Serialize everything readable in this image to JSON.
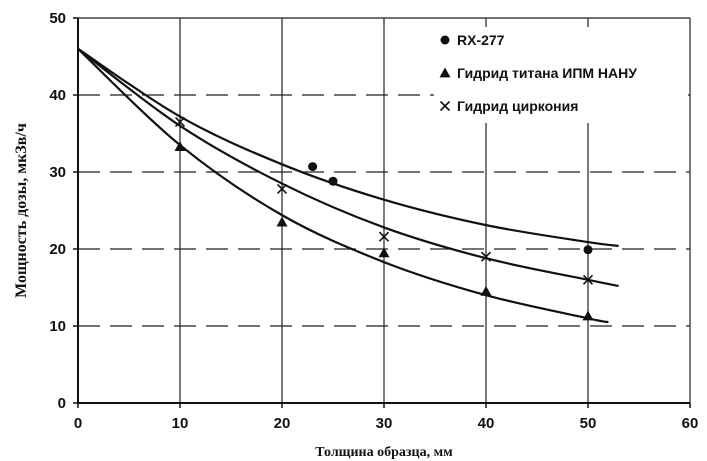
{
  "chart_data": {
    "type": "scatter",
    "xlabel": "Толщина образца, мм",
    "ylabel": "Мощность дозы, мкЗв/ч",
    "xlim": [
      0,
      60
    ],
    "ylim": [
      0,
      50
    ],
    "xticks": [
      "0",
      "10",
      "20",
      "30",
      "40",
      "50",
      "60"
    ],
    "yticks": [
      "0",
      "10",
      "20",
      "30",
      "40",
      "50"
    ],
    "grid": "vertical solid, horizontal dashed",
    "legend_position": "top-right",
    "series": [
      {
        "name": "RX-277",
        "marker": "circle",
        "points": [
          [
            23,
            30.7
          ],
          [
            25,
            28.8
          ],
          [
            50,
            19.9
          ]
        ],
        "fit_curve": [
          [
            0,
            46
          ],
          [
            10,
            37.2
          ],
          [
            20,
            31.0
          ],
          [
            30,
            26.4
          ],
          [
            40,
            23.1
          ],
          [
            50,
            20.9
          ],
          [
            53,
            20.4
          ]
        ]
      },
      {
        "name": "Гидрид титана ИПМ НАНУ",
        "marker": "triangle",
        "points": [
          [
            10,
            33.3
          ],
          [
            20,
            23.5
          ],
          [
            30,
            19.5
          ],
          [
            40,
            14.5
          ],
          [
            50,
            11.3
          ]
        ],
        "fit_curve": [
          [
            0,
            46
          ],
          [
            10,
            33.5
          ],
          [
            20,
            24.4
          ],
          [
            30,
            18.3
          ],
          [
            40,
            14.0
          ],
          [
            50,
            11.0
          ],
          [
            52,
            10.5
          ]
        ]
      },
      {
        "name": "Гидрид циркония",
        "marker": "x",
        "points": [
          [
            10,
            36.5
          ],
          [
            20,
            27.8
          ],
          [
            30,
            21.6
          ],
          [
            40,
            19.0
          ],
          [
            50,
            16.0
          ]
        ],
        "fit_curve": [
          [
            0,
            46
          ],
          [
            10,
            36.0
          ],
          [
            20,
            28.5
          ],
          [
            30,
            22.8
          ],
          [
            40,
            18.8
          ],
          [
            50,
            16.0
          ],
          [
            53,
            15.2
          ]
        ]
      }
    ]
  }
}
